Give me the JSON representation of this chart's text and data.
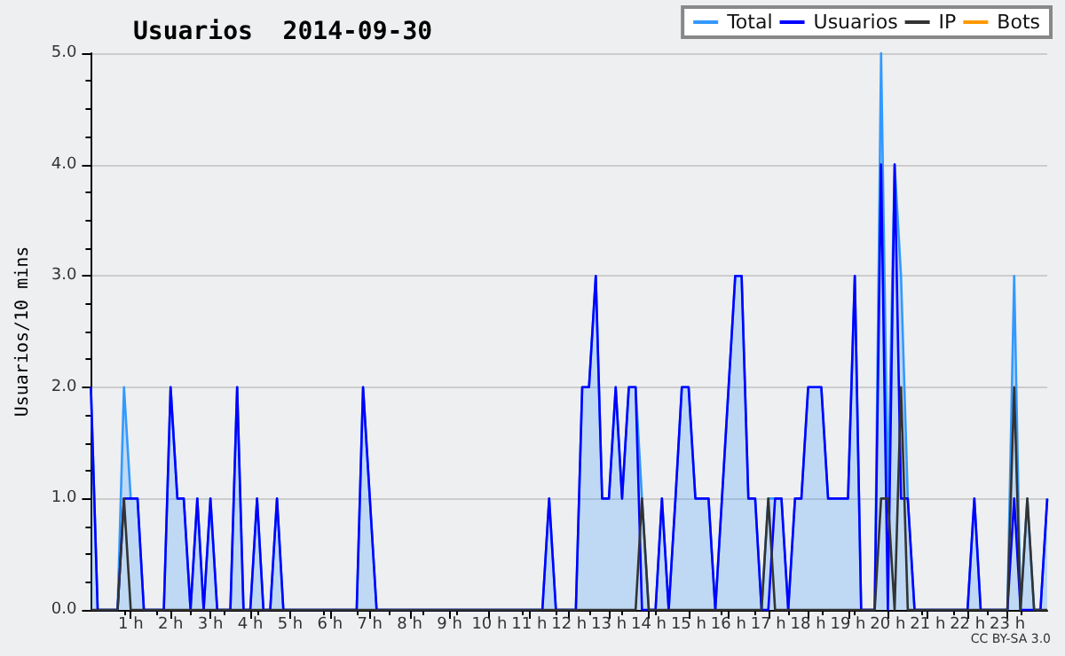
{
  "chart_data": {
    "type": "line",
    "title": "Usuarios  2014-09-30",
    "ylabel": "Usuarios/10 mins",
    "annotations": [
      "CC BY-SA 3.0"
    ],
    "xlim": [
      0,
      24
    ],
    "xticks": [
      {
        "value": 1,
        "label": "1 h"
      },
      {
        "value": 2,
        "label": "2 h"
      },
      {
        "value": 3,
        "label": "3 h"
      },
      {
        "value": 4,
        "label": "4 h"
      },
      {
        "value": 5,
        "label": "5 h"
      },
      {
        "value": 6,
        "label": "6 h"
      },
      {
        "value": 7,
        "label": "7 h"
      },
      {
        "value": 8,
        "label": "8 h"
      },
      {
        "value": 9,
        "label": "9 h"
      },
      {
        "value": 10,
        "label": "10 h"
      },
      {
        "value": 11,
        "label": "11 h"
      },
      {
        "value": 12,
        "label": "12 h"
      },
      {
        "value": 13,
        "label": "13 h"
      },
      {
        "value": 14,
        "label": "14 h"
      },
      {
        "value": 15,
        "label": "15 h"
      },
      {
        "value": 16,
        "label": "16 h"
      },
      {
        "value": 17,
        "label": "17 h"
      },
      {
        "value": 18,
        "label": "18 h"
      },
      {
        "value": 19,
        "label": "19 h"
      },
      {
        "value": 20,
        "label": "20 h"
      },
      {
        "value": 21,
        "label": "21 h"
      },
      {
        "value": 22,
        "label": "22 h"
      },
      {
        "value": 23,
        "label": "23 h"
      }
    ],
    "ylim": [
      0,
      5
    ],
    "yticks": [
      {
        "value": 0,
        "label": "0.0"
      },
      {
        "value": 1,
        "label": "1.0"
      },
      {
        "value": 2,
        "label": "2.0"
      },
      {
        "value": 3,
        "label": "3.0"
      },
      {
        "value": 4,
        "label": "4.0"
      },
      {
        "value": 5,
        "label": "5.0"
      }
    ],
    "grid": "y",
    "legend": "top right",
    "marker": "none",
    "line_style": "solid",
    "series": [
      {
        "name": "Total",
        "type": "area",
        "color": "#3399ff",
        "x": [
          0,
          0.17,
          0.67,
          0.83,
          1,
          1.17,
          1.33,
          1.83,
          2,
          2.17,
          2.33,
          2.5,
          2.67,
          2.83,
          3,
          3.17,
          3.5,
          3.67,
          3.83,
          4,
          4.17,
          4.33,
          4.5,
          4.67,
          4.83,
          6.67,
          6.83,
          7,
          7.17,
          11.33,
          11.5,
          11.67,
          12.17,
          12.33,
          12.5,
          12.67,
          12.83,
          13,
          13.17,
          13.33,
          13.5,
          13.67,
          13.83,
          14,
          14.17,
          14.33,
          14.5,
          14.67,
          14.83,
          15,
          15.17,
          15.5,
          15.67,
          16.17,
          16.33,
          16.5,
          16.67,
          16.83,
          17,
          17.17,
          17.33,
          17.5,
          17.67,
          17.83,
          18,
          18.33,
          18.5,
          19,
          19.17,
          19.33,
          19.67,
          19.83,
          20,
          20.17,
          20.33,
          20.5,
          20.67,
          22,
          22.17,
          22.33,
          23,
          23.17,
          23.33,
          23.5,
          23.67,
          23.83,
          24
        ],
        "values": [
          2,
          0,
          0,
          2,
          1,
          1,
          0,
          0,
          2,
          1,
          1,
          0,
          1,
          0,
          1,
          0,
          0,
          2,
          0,
          0,
          1,
          0,
          0,
          1,
          0,
          0,
          2,
          1,
          0,
          0,
          1,
          0,
          0,
          2,
          2,
          3,
          1,
          1,
          2,
          1,
          2,
          2,
          1,
          0,
          0,
          1,
          0,
          1,
          2,
          2,
          1,
          1,
          0,
          3,
          3,
          1,
          1,
          0,
          1,
          1,
          1,
          0,
          1,
          1,
          2,
          2,
          1,
          1,
          3,
          0,
          0,
          5,
          1,
          4,
          3,
          1,
          0,
          0,
          1,
          0,
          0,
          3,
          0,
          1,
          0,
          0,
          1
        ]
      },
      {
        "name": "Usuarios",
        "color": "#0000ff",
        "x": [
          0,
          0.17,
          0.67,
          0.83,
          1.17,
          1.33,
          1.83,
          2,
          2.17,
          2.33,
          2.5,
          2.67,
          2.83,
          3,
          3.17,
          3.5,
          3.67,
          3.83,
          4,
          4.17,
          4.33,
          4.5,
          4.67,
          4.83,
          6.67,
          6.83,
          7.17,
          11.33,
          11.5,
          11.67,
          12.17,
          12.33,
          12.5,
          12.67,
          12.83,
          13,
          13.17,
          13.33,
          13.5,
          13.67,
          13.83,
          14.17,
          14.33,
          14.5,
          14.67,
          14.83,
          15,
          15.17,
          15.5,
          15.67,
          16.17,
          16.33,
          16.5,
          16.67,
          16.83,
          17,
          17.17,
          17.33,
          17.5,
          17.67,
          17.83,
          18,
          18.33,
          18.5,
          19,
          19.17,
          19.33,
          19.67,
          19.83,
          20,
          20.17,
          20.33,
          20.5,
          20.67,
          22,
          22.17,
          22.33,
          23,
          23.17,
          23.33,
          23.83,
          24
        ],
        "values": [
          2,
          0,
          0,
          1,
          1,
          0,
          0,
          2,
          1,
          1,
          0,
          1,
          0,
          1,
          0,
          0,
          2,
          0,
          0,
          1,
          0,
          0,
          1,
          0,
          0,
          2,
          0,
          0,
          1,
          0,
          0,
          2,
          2,
          3,
          1,
          1,
          2,
          1,
          2,
          2,
          0,
          0,
          1,
          0,
          1,
          2,
          2,
          1,
          1,
          0,
          3,
          3,
          1,
          1,
          0,
          0,
          1,
          1,
          0,
          1,
          1,
          2,
          2,
          1,
          1,
          3,
          0,
          0,
          4,
          0,
          4,
          1,
          1,
          0,
          0,
          1,
          0,
          0,
          1,
          0,
          0,
          1
        ]
      },
      {
        "name": "IP",
        "color": "#333333",
        "x": [
          0,
          0.67,
          0.83,
          1,
          13.67,
          13.83,
          14,
          16.83,
          17,
          17.17,
          19.67,
          19.83,
          20,
          20.17,
          20.33,
          20.5,
          23,
          23.17,
          23.33,
          23.5,
          23.67,
          24
        ],
        "values": [
          0,
          0,
          1,
          0,
          0,
          1,
          0,
          0,
          1,
          0,
          0,
          1,
          1,
          0,
          2,
          0,
          0,
          2,
          0,
          1,
          0,
          0
        ]
      },
      {
        "name": "Bots",
        "color": "#ff9900"
      }
    ]
  }
}
